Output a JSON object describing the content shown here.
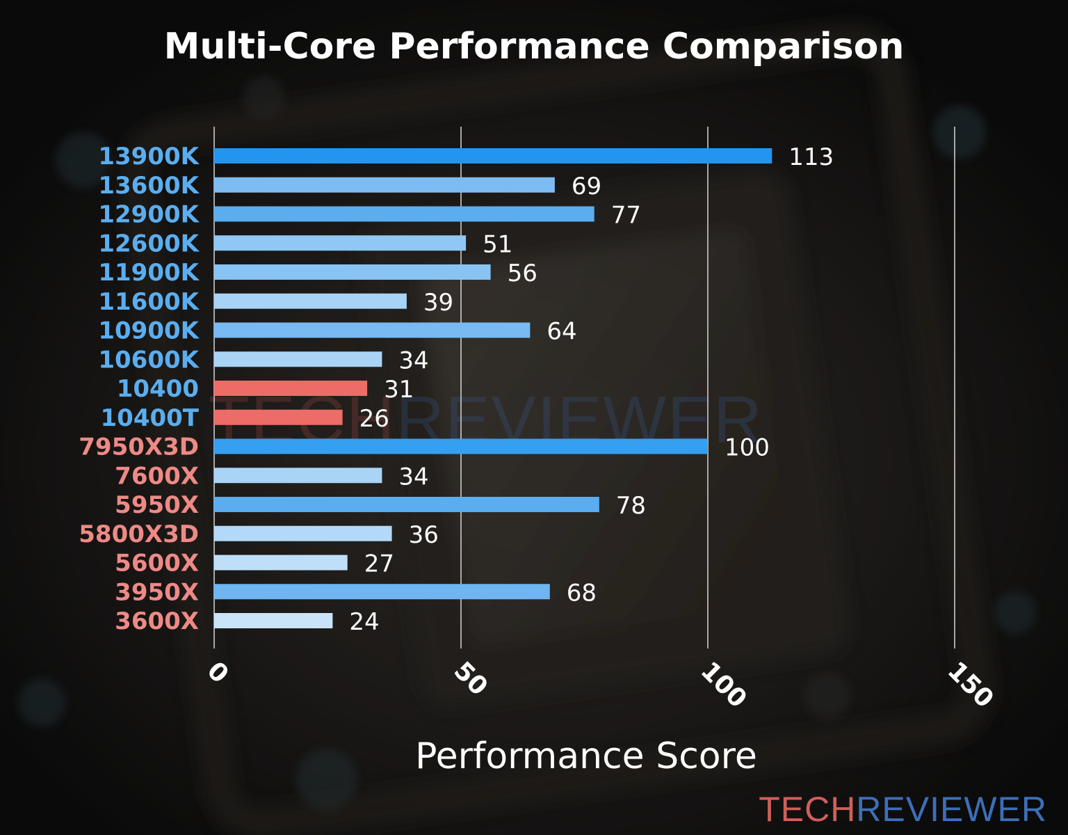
{
  "chart_data": {
    "type": "bar",
    "orientation": "horizontal",
    "title": "Multi-Core Performance Comparison",
    "xlabel": "Performance Score",
    "ylabel": "",
    "xlim": [
      0,
      150
    ],
    "xticks": [
      0,
      50,
      100,
      150
    ],
    "grid": "vertical",
    "categories": [
      "13900K",
      "13600K",
      "12900K",
      "12600K",
      "11900K",
      "11600K",
      "10900K",
      "10600K",
      "10400",
      "10400T",
      "7950X3D",
      "7600X",
      "5950X",
      "5800X3D",
      "5600X",
      "3950X",
      "3600X"
    ],
    "values": [
      113,
      69,
      77,
      51,
      56,
      39,
      64,
      34,
      31,
      26,
      100,
      34,
      78,
      36,
      27,
      68,
      24
    ],
    "label_colors": [
      "#5aaef0",
      "#5aaef0",
      "#5aaef0",
      "#5aaef0",
      "#5aaef0",
      "#5aaef0",
      "#5aaef0",
      "#5aaef0",
      "#5aaef0",
      "#5aaef0",
      "#ee8a86",
      "#ee8a86",
      "#ee8a86",
      "#ee8a86",
      "#ee8a86",
      "#ee8a86",
      "#ee8a86"
    ],
    "bar_colors": [
      "#2395ee",
      "#7cbcf2",
      "#5aaef0",
      "#90c8f4",
      "#88c4f3",
      "#a6d3f6",
      "#78baf1",
      "#a9d4f6",
      "#ee6c68",
      "#ee6c68",
      "#369fef",
      "#a9d4f6",
      "#59adf0",
      "#b2d9f7",
      "#bfdff8",
      "#6fb5f1",
      "#c9e4f9"
    ]
  },
  "watermark": {
    "tech": "TECH",
    "reviewer": "REVIEWER",
    "tech_color": "#c0544f",
    "reviewer_color": "#3a67a8"
  },
  "colors": {
    "title": "#ffffff",
    "axis_label": "#ffffff",
    "grid": "#d8d8d8",
    "value_label": "#ffffff"
  }
}
